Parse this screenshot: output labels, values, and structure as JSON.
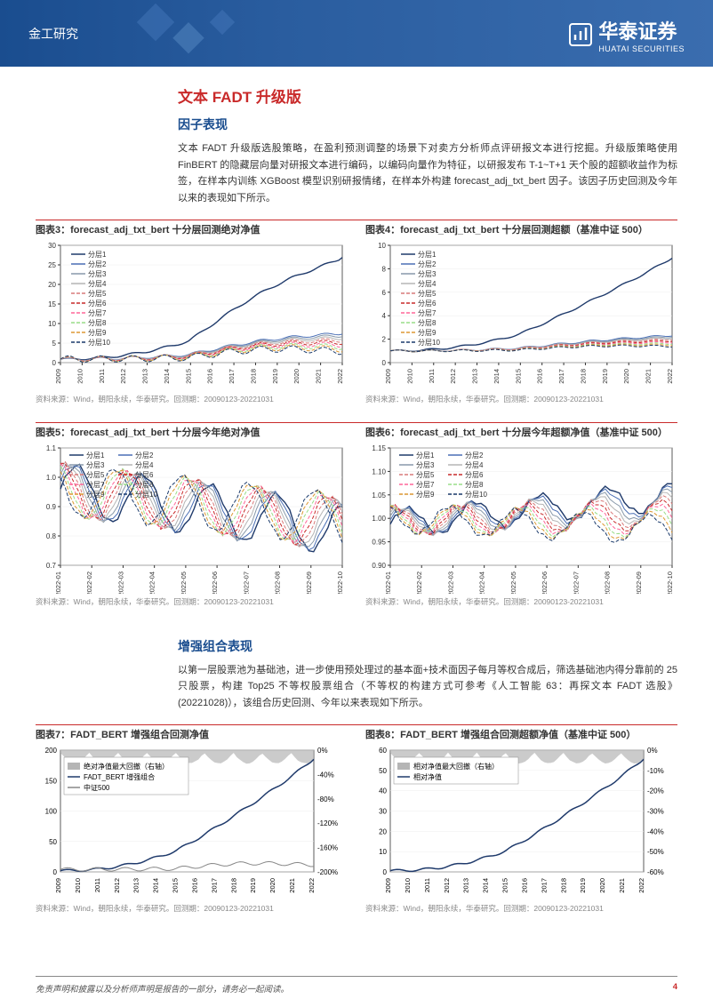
{
  "header": {
    "category": "金工研究",
    "logo_main": "华泰证券",
    "logo_sub": "HUATAI SECURITIES"
  },
  "section1": {
    "title": "文本 FADT 升级版",
    "sub1": "因子表现",
    "para1": "文本 FADT 升级版选股策略，在盈利预测调整的场景下对卖方分析师点评研报文本进行挖掘。升级版策略使用 FinBERT 的隐藏层向量对研报文本进行编码，以编码向量作为特征，以研报发布 T-1~T+1 天个股的超额收益作为标签，在样本内训练 XGBoost 模型识别研报情绪，在样本外构建 forecast_adj_txt_bert 因子。该因子历史回测及今年以来的表现如下所示。"
  },
  "charts": {
    "c3": {
      "title": "图表3：forecast_adj_txt_bert 十分层回测绝对净值",
      "ylim": [
        0,
        30
      ],
      "yticks": [
        0,
        5,
        10,
        15,
        20,
        25,
        30
      ],
      "xticks": [
        "2009",
        "2010",
        "2011",
        "2012",
        "2013",
        "2014",
        "2015",
        "2016",
        "2017",
        "2018",
        "2019",
        "2020",
        "2021",
        "2022"
      ],
      "src": "资料来源：Wind，朝阳永续，华泰研究。回测期：20090123-20221031"
    },
    "c4": {
      "title": "图表4：forecast_adj_txt_bert 十分层回测超额（基准中证 500）",
      "ylim": [
        0,
        10
      ],
      "yticks": [
        0,
        2,
        4,
        6,
        8,
        10
      ],
      "xticks": [
        "2009",
        "2010",
        "2011",
        "2012",
        "2013",
        "2014",
        "2015",
        "2016",
        "2017",
        "2018",
        "2019",
        "2020",
        "2021",
        "2022"
      ],
      "src": "资料来源：Wind，朝阳永续，华泰研究。回测期：20090123-20221031"
    },
    "c5": {
      "title": "图表5：forecast_adj_txt_bert 十分层今年绝对净值",
      "ylim": [
        0.7,
        1.1
      ],
      "yticks": [
        "0.7",
        "0.8",
        "0.9",
        "1.0",
        "1.1"
      ],
      "xticks": [
        "2022-01",
        "2022-02",
        "2022-03",
        "2022-04",
        "2022-05",
        "2022-06",
        "2022-07",
        "2022-08",
        "2022-09",
        "2022-10"
      ],
      "src": "资料来源：Wind，朝阳永续，华泰研究。回测期：20090123-20221031"
    },
    "c6": {
      "title": "图表6：forecast_adj_txt_bert 十分层今年超额净值（基准中证 500）",
      "ylim": [
        0.9,
        1.15
      ],
      "yticks": [
        "0.90",
        "0.95",
        "1.00",
        "1.05",
        "1.10",
        "1.15"
      ],
      "xticks": [
        "2022-01",
        "2022-02",
        "2022-03",
        "2022-04",
        "2022-05",
        "2022-06",
        "2022-07",
        "2022-08",
        "2022-09",
        "2022-10"
      ],
      "src": "资料来源：Wind，朝阳永续，华泰研究。回测期：20090123-20221031"
    },
    "c7": {
      "title": "图表7：FADT_BERT 增强组合回测净值",
      "yticks_left": [
        "0",
        "50",
        "100",
        "150",
        "200"
      ],
      "yticks_right": [
        "0%",
        "-40%",
        "-80%",
        "-120%",
        "-160%",
        "-200%"
      ],
      "xticks": [
        "2009",
        "2010",
        "2011",
        "2012",
        "2013",
        "2014",
        "2015",
        "2016",
        "2017",
        "2018",
        "2019",
        "2020",
        "2021",
        "2022"
      ],
      "legend": [
        "绝对净值最大回撤（右轴）",
        "FADT_BERT 增强组合",
        "中证500"
      ],
      "src": "资料来源：Wind，朝阳永续，华泰研究。回测期：20090123-20221031"
    },
    "c8": {
      "title": "图表8：FADT_BERT 增强组合回测超额净值（基准中证 500）",
      "yticks_left": [
        "0",
        "10",
        "20",
        "30",
        "40",
        "50",
        "60"
      ],
      "yticks_right": [
        "0%",
        "-10%",
        "-20%",
        "-30%",
        "-40%",
        "-50%",
        "-60%"
      ],
      "xticks": [
        "2009",
        "2010",
        "2011",
        "2012",
        "2013",
        "2014",
        "2015",
        "2016",
        "2017",
        "2018",
        "2019",
        "2020",
        "2021",
        "2022"
      ],
      "legend": [
        "相对净值最大回撤（右轴）",
        "相对净值"
      ],
      "src": "资料来源：Wind，朝阳永续，华泰研究。回测期：20090123-20221031"
    },
    "layer_legend": [
      "分层1",
      "分层2",
      "分层3",
      "分层4",
      "分层5",
      "分层6",
      "分层7",
      "分层8",
      "分层9",
      "分层10"
    ],
    "layer_colors": [
      "#1f3a6b",
      "#4a6fb5",
      "#8899aa",
      "#b5b5b5",
      "#d97a7a",
      "#c92a2a",
      "#ff6699",
      "#99dd88",
      "#dd9933",
      "#1a3a6b"
    ],
    "layer_dash": [
      "",
      "",
      "",
      "",
      "4,2",
      "4,2",
      "4,2",
      "4,2",
      "4,2",
      "4,2"
    ]
  },
  "section2": {
    "sub1": "增强组合表现",
    "para1": "以第一层股票池为基础池，进一步使用预处理过的基本面+技术面因子每月等权合成后，筛选基础池内得分靠前的 25 只股票，构建 Top25 不等权股票组合（不等权的构建方式可参考《人工智能 63：再探文本 FADT 选股》(20221028)），该组合历史回测、今年以来表现如下所示。"
  },
  "footer": {
    "disclaimer": "免责声明和披露以及分析师声明是报告的一部分，请务必一起阅读。",
    "page": "4"
  }
}
